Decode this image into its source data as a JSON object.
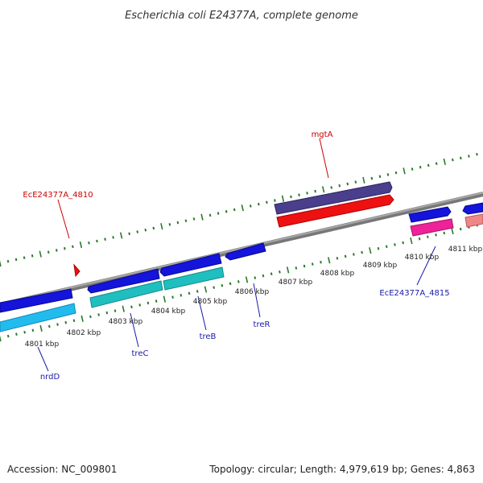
{
  "title": "Escherichia coli E24377A, complete genome",
  "footer": {
    "accession": "Accession: NC_009801",
    "summary": "Topology: circular; Length: 4,979,619 bp; Genes: 4,863"
  },
  "kbp_labels": [
    "4801 kbp",
    "4802 kbp",
    "4803 kbp",
    "4804 kbp",
    "4805 kbp",
    "4806 kbp",
    "4807 kbp",
    "4808 kbp",
    "4809 kbp",
    "4810 kbp",
    "4811 kbp"
  ],
  "gene_labels": {
    "mgtA": "mgtA",
    "ece4810": "EcE24377A_4810",
    "nrdD": "nrdD",
    "treC": "treC",
    "treB": "treB",
    "treR": "treR",
    "ece4815": "EcE24377A_4815"
  },
  "colors": {
    "tick": "#2a7a2a",
    "backbone": "#888888",
    "blue_gene": "#1414dc",
    "cyan_gene": "#1fbfbf",
    "light_blue_gene": "#22bbee",
    "purple_gene": "#4a3f8c",
    "red_gene": "#ee1111",
    "pink_gene": "#ee2299",
    "salmon_gene": "#ee8888",
    "red_label": "#cc0000",
    "blue_label": "#1a1aaa"
  }
}
